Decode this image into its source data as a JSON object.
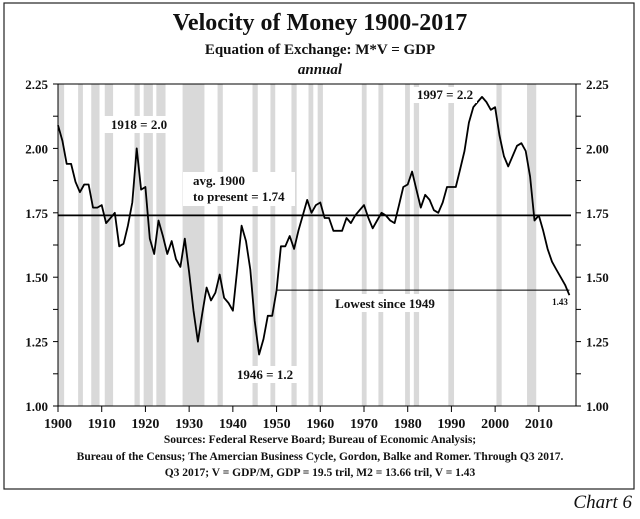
{
  "chart_data": {
    "type": "line",
    "title": "Velocity of Money 1900-2017",
    "subtitle": "Equation of Exchange: M*V = GDP",
    "frequency_note": "annual",
    "xlim": [
      1900,
      2018.5
    ],
    "ylim": [
      1.0,
      2.25
    ],
    "x_ticks": [
      "1900",
      "1910",
      "1920",
      "1930",
      "1940",
      "1950",
      "1960",
      "1970",
      "1980",
      "1990",
      "2000",
      "2010"
    ],
    "y_ticks": [
      "1.00",
      "1.25",
      "1.50",
      "1.75",
      "2.00",
      "2.25"
    ],
    "y_axis_both_sides": true,
    "grid": false,
    "line_color": "#000000",
    "recession_shading_color": "#d9d9d9",
    "recession_periods": [
      [
        1899.8,
        1901.4
      ],
      [
        1904.6,
        1905.7
      ],
      [
        1907.6,
        1909.5
      ],
      [
        1910.7,
        1912.6
      ],
      [
        1917.5,
        1918.7
      ],
      [
        1919.6,
        1921.7
      ],
      [
        1922.5,
        1924.6
      ],
      [
        1928.5,
        1933.5
      ],
      [
        1936.5,
        1937.7
      ],
      [
        1944.5,
        1945.7
      ],
      [
        1948.6,
        1949.7
      ],
      [
        1953.4,
        1954.6
      ],
      [
        1957.3,
        1958.4
      ],
      [
        1959.4,
        1960.6
      ],
      [
        1969.5,
        1970.6
      ],
      [
        1973.3,
        1974.4
      ],
      [
        1979.4,
        1980.5
      ],
      [
        1981.4,
        1982.6
      ],
      [
        1989.3,
        1990.6
      ],
      [
        2000.3,
        2001.5
      ],
      [
        2007.3,
        2009.4
      ]
    ],
    "x_start": 1900,
    "values": [
      2.09,
      2.03,
      1.94,
      1.94,
      1.87,
      1.83,
      1.86,
      1.86,
      1.77,
      1.77,
      1.78,
      1.71,
      1.73,
      1.75,
      1.62,
      1.63,
      1.7,
      1.79,
      2.0,
      1.84,
      1.85,
      1.65,
      1.59,
      1.72,
      1.66,
      1.59,
      1.64,
      1.57,
      1.54,
      1.65,
      1.52,
      1.37,
      1.25,
      1.36,
      1.46,
      1.41,
      1.44,
      1.51,
      1.42,
      1.4,
      1.37,
      1.53,
      1.7,
      1.64,
      1.53,
      1.33,
      1.2,
      1.26,
      1.35,
      1.35,
      1.45,
      1.62,
      1.62,
      1.66,
      1.61,
      1.68,
      1.74,
      1.8,
      1.75,
      1.78,
      1.79,
      1.73,
      1.73,
      1.68,
      1.68,
      1.68,
      1.73,
      1.71,
      1.74,
      1.76,
      1.78,
      1.73,
      1.69,
      1.72,
      1.75,
      1.74,
      1.72,
      1.71,
      1.78,
      1.85,
      1.86,
      1.91,
      1.84,
      1.77,
      1.82,
      1.8,
      1.76,
      1.75,
      1.79,
      1.85,
      1.85,
      1.85,
      1.92,
      1.99,
      2.1,
      2.16,
      2.18,
      2.2,
      2.18,
      2.15,
      2.16,
      2.05,
      1.97,
      1.93,
      1.97,
      2.01,
      2.02,
      1.99,
      1.89,
      1.72,
      1.74,
      1.68,
      1.61,
      1.56,
      1.53,
      1.5,
      1.47,
      1.43
    ],
    "average_line": {
      "value": 1.74,
      "label_line1": "avg. 1900",
      "label_line2": "to present = 1.74"
    },
    "lowest_line": {
      "value": 1.45,
      "from": 1950,
      "to": 2017,
      "label": "Lowest since 1949"
    },
    "annotations": {
      "peak_1918": "1918 = 2.0",
      "trough_1946": "1946 = 1.2",
      "peak_1997": "1997 = 2.2",
      "last_value": "1.43"
    },
    "sources": [
      "Sources: Federal Reserve Board; Bureau of Economic Analysis;",
      "Bureau of the Census; The Amercian Business Cycle, Gordon, Balke and Romer. Through Q3 2017.",
      "Q3 2017; V = GDP/M, GDP = 19.5 tril, M2 = 13.66 tril, V = 1.43"
    ],
    "chart_number": "Chart 6"
  }
}
